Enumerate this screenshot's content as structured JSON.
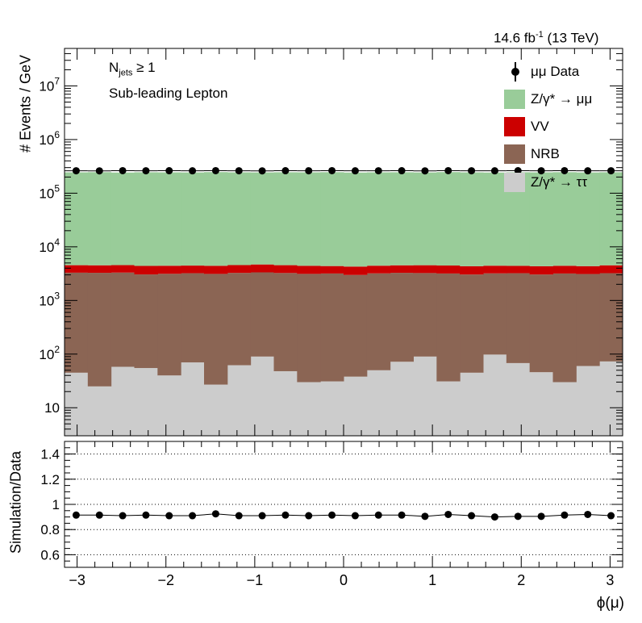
{
  "header": {
    "lumi_text": "14.6 fb",
    "lumi_sup": "-1",
    "lumi_tail": " (13 TeV)",
    "selection_main": "N",
    "selection_sub": "jets",
    "selection_tail": " ≥ 1",
    "region": "Sub-leading Lepton"
  },
  "axes": {
    "top_ylabel": "# Events / GeV",
    "bottom_ylabel": "Simulation/Data",
    "xlabel": "ϕ(μ)"
  },
  "legend": [
    {
      "label": "μμ Data",
      "kind": "marker",
      "color": "#000000"
    },
    {
      "label": "Z/γ* → μμ",
      "kind": "box",
      "color": "#99cc99"
    },
    {
      "label": "VV",
      "kind": "box",
      "color": "#cc0000"
    },
    {
      "label": "NRB",
      "kind": "box",
      "color": "#8b6554"
    },
    {
      "label": "Z/γ* → ττ",
      "kind": "box",
      "color": "#cccccc"
    }
  ],
  "chart_data": [
    {
      "type": "area",
      "stacked": true,
      "x_edges": [
        -3.1416,
        -2.8798,
        -2.618,
        -2.3562,
        -2.0944,
        -1.8326,
        -1.5708,
        -1.309,
        -1.0472,
        -0.7854,
        -0.5236,
        -0.2618,
        0.0,
        0.2618,
        0.5236,
        0.7854,
        1.0472,
        1.309,
        1.5708,
        1.8326,
        2.0944,
        2.3562,
        2.618,
        2.8798,
        3.1416
      ],
      "y_log": true,
      "ylim": [
        3,
        50000000
      ],
      "xlim": [
        -3.1416,
        3.1416
      ],
      "ylabel": "# Events / GeV",
      "y_ticks": [
        "10",
        "10²",
        "10³",
        "10⁴",
        "10⁵",
        "10⁶",
        "10⁷"
      ],
      "series": [
        {
          "name": "Z/γ* → ττ",
          "color": "#cccccc",
          "values": [
            45,
            25,
            58,
            55,
            40,
            70,
            27,
            62,
            90,
            48,
            30,
            31,
            38,
            50,
            72,
            90,
            31,
            45,
            98,
            68,
            46,
            30,
            60,
            73
          ]
        },
        {
          "name": "NRB",
          "color": "#8b6554",
          "values": [
            3250,
            3250,
            3250,
            3000,
            3100,
            3150,
            3100,
            3200,
            3250,
            3200,
            3100,
            3150,
            2950,
            3150,
            3200,
            3150,
            3150,
            3000,
            3100,
            3150,
            3000,
            3150,
            3050,
            3150
          ]
        },
        {
          "name": "VV",
          "color": "#cc0000",
          "values": [
            1250,
            1250,
            1250,
            1350,
            1300,
            1250,
            1300,
            1300,
            1350,
            1300,
            1300,
            1200,
            1300,
            1250,
            1250,
            1300,
            1300,
            1300,
            1250,
            1200,
            1300,
            1250,
            1250,
            1300
          ]
        },
        {
          "name": "Z/γ* → μμ",
          "color": "#99cc99",
          "values": [
            240000,
            242000,
            238000,
            241000,
            240000,
            239000,
            243000,
            240000,
            239000,
            241000,
            240000,
            242000,
            238000,
            240000,
            241000,
            239000,
            243000,
            240000,
            238000,
            241000,
            240000,
            242000,
            239000,
            241000
          ]
        },
        {
          "name": "μμ Data",
          "kind": "points",
          "color": "#000000",
          "values": [
            262000,
            261000,
            263000,
            262000,
            262500,
            261500,
            263000,
            262000,
            261000,
            262500,
            262000,
            263000,
            261500,
            262000,
            262500,
            261000,
            263000,
            262000,
            261500,
            262500,
            262000,
            263000,
            261500,
            262000
          ]
        }
      ]
    },
    {
      "type": "scatter",
      "xlim": [
        -3.1416,
        3.1416
      ],
      "ylim": [
        0.5,
        1.5
      ],
      "ylabel": "Simulation/Data",
      "xlabel": "ϕ(μ)",
      "y_ticks": [
        0.6,
        0.8,
        1,
        1.2,
        1.4
      ],
      "x_ticks": [
        -3,
        -2,
        -1,
        0,
        1,
        2,
        3
      ],
      "x_tick_labels": [
        "−3",
        "−2",
        "−1",
        "0",
        "1",
        "2",
        "3"
      ],
      "series": [
        {
          "name": "",
          "values": [
            0.915,
            0.915,
            0.91,
            0.915,
            0.91,
            0.91,
            0.925,
            0.91,
            0.91,
            0.915,
            0.91,
            0.915,
            0.91,
            0.915,
            0.915,
            0.905,
            0.92,
            0.91,
            0.9,
            0.905,
            0.905,
            0.915,
            0.92,
            0.91
          ]
        }
      ]
    }
  ]
}
